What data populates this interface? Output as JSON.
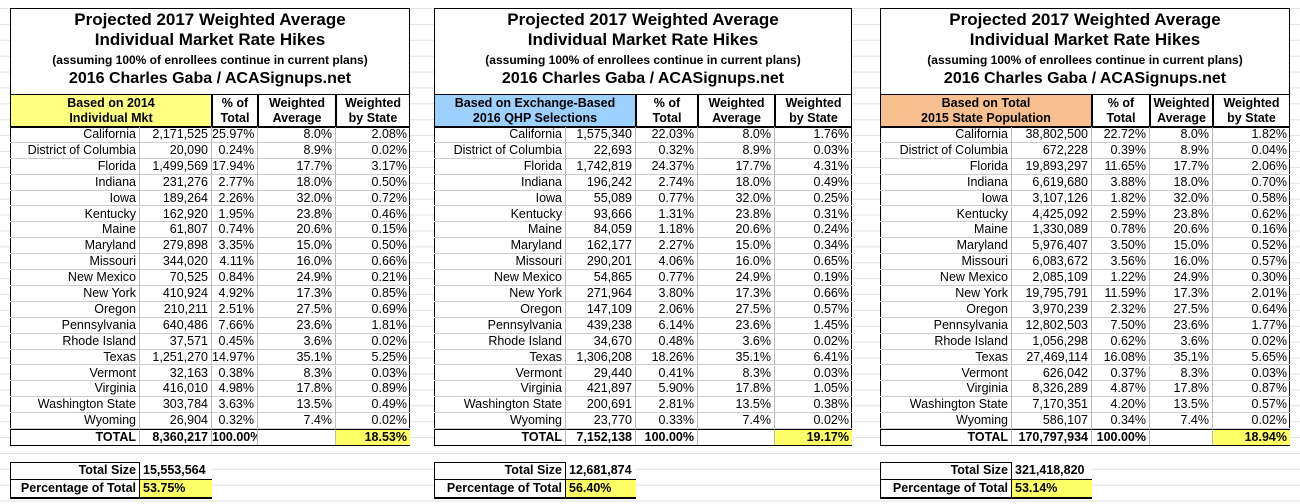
{
  "panels": [
    {
      "title": [
        "Projected 2017 Weighted Average",
        "Individual Market Rate Hikes",
        "(assuming 100% of enrollees continue in current plans)",
        "2016 Charles Gaba / ACASignups.net"
      ],
      "headers": [
        [
          "Based on 2014",
          "Individual Mkt"
        ],
        [
          "% of",
          "Total"
        ],
        [
          "Weighted",
          "Average"
        ],
        [
          "Weighted",
          "by State"
        ]
      ],
      "rows": [
        [
          "California",
          "2,171,525",
          "25.97%",
          "8.0%",
          "2.08%"
        ],
        [
          "District of Columbia",
          "20,090",
          "0.24%",
          "8.9%",
          "0.02%"
        ],
        [
          "Florida",
          "1,499,569",
          "17.94%",
          "17.7%",
          "3.17%"
        ],
        [
          "Indiana",
          "231,276",
          "2.77%",
          "18.0%",
          "0.50%"
        ],
        [
          "Iowa",
          "189,264",
          "2.26%",
          "32.0%",
          "0.72%"
        ],
        [
          "Kentucky",
          "162,920",
          "1.95%",
          "23.8%",
          "0.46%"
        ],
        [
          "Maine",
          "61,807",
          "0.74%",
          "20.6%",
          "0.15%"
        ],
        [
          "Maryland",
          "279,898",
          "3.35%",
          "15.0%",
          "0.50%"
        ],
        [
          "Missouri",
          "344,020",
          "4.11%",
          "16.0%",
          "0.66%"
        ],
        [
          "New Mexico",
          "70,525",
          "0.84%",
          "24.9%",
          "0.21%"
        ],
        [
          "New York",
          "410,924",
          "4.92%",
          "17.3%",
          "0.85%"
        ],
        [
          "Oregon",
          "210,211",
          "2.51%",
          "27.5%",
          "0.69%"
        ],
        [
          "Pennsylvania",
          "640,486",
          "7.66%",
          "23.6%",
          "1.81%"
        ],
        [
          "Rhode Island",
          "37,571",
          "0.45%",
          "3.6%",
          "0.02%"
        ],
        [
          "Texas",
          "1,251,270",
          "14.97%",
          "35.1%",
          "5.25%"
        ],
        [
          "Vermont",
          "32,163",
          "0.38%",
          "8.3%",
          "0.03%"
        ],
        [
          "Virginia",
          "416,010",
          "4.98%",
          "17.8%",
          "0.89%"
        ],
        [
          "Washington State",
          "303,784",
          "3.63%",
          "13.5%",
          "0.49%"
        ],
        [
          "Wyoming",
          "26,904",
          "0.32%",
          "7.4%",
          "0.02%"
        ]
      ],
      "total": {
        "label": "TOTAL",
        "value": "8,360,217",
        "pct": "100.00%",
        "weighted": "18.53%"
      },
      "summary": [
        [
          "Total Size",
          "15,553,564"
        ],
        [
          "Percentage of Total",
          "53.75%"
        ]
      ]
    },
    {
      "title": [
        "Projected 2017 Weighted Average",
        "Individual Market Rate Hikes",
        "(assuming 100% of enrollees continue in current plans)",
        "2016 Charles Gaba / ACASignups.net"
      ],
      "headers": [
        [
          "Based on Exchange-Based",
          "2016 QHP Selections"
        ],
        [
          "% of",
          "Total"
        ],
        [
          "Weighted",
          "Average"
        ],
        [
          "Weighted",
          "by State"
        ]
      ],
      "rows": [
        [
          "California",
          "1,575,340",
          "22.03%",
          "8.0%",
          "1.76%"
        ],
        [
          "District of Columbia",
          "22,693",
          "0.32%",
          "8.9%",
          "0.03%"
        ],
        [
          "Florida",
          "1,742,819",
          "24.37%",
          "17.7%",
          "4.31%"
        ],
        [
          "Indiana",
          "196,242",
          "2.74%",
          "18.0%",
          "0.49%"
        ],
        [
          "Iowa",
          "55,089",
          "0.77%",
          "32.0%",
          "0.25%"
        ],
        [
          "Kentucky",
          "93,666",
          "1.31%",
          "23.8%",
          "0.31%"
        ],
        [
          "Maine",
          "84,059",
          "1.18%",
          "20.6%",
          "0.24%"
        ],
        [
          "Maryland",
          "162,177",
          "2.27%",
          "15.0%",
          "0.34%"
        ],
        [
          "Missouri",
          "290,201",
          "4.06%",
          "16.0%",
          "0.65%"
        ],
        [
          "New Mexico",
          "54,865",
          "0.77%",
          "24.9%",
          "0.19%"
        ],
        [
          "New York",
          "271,964",
          "3.80%",
          "17.3%",
          "0.66%"
        ],
        [
          "Oregon",
          "147,109",
          "2.06%",
          "27.5%",
          "0.57%"
        ],
        [
          "Pennsylvania",
          "439,238",
          "6.14%",
          "23.6%",
          "1.45%"
        ],
        [
          "Rhode Island",
          "34,670",
          "0.48%",
          "3.6%",
          "0.02%"
        ],
        [
          "Texas",
          "1,306,208",
          "18.26%",
          "35.1%",
          "6.41%"
        ],
        [
          "Vermont",
          "29,440",
          "0.41%",
          "8.3%",
          "0.03%"
        ],
        [
          "Virginia",
          "421,897",
          "5.90%",
          "17.8%",
          "1.05%"
        ],
        [
          "Washington State",
          "200,691",
          "2.81%",
          "13.5%",
          "0.38%"
        ],
        [
          "Wyoming",
          "23,770",
          "0.33%",
          "7.4%",
          "0.02%"
        ]
      ],
      "total": {
        "label": "TOTAL",
        "value": "7,152,138",
        "pct": "100.00%",
        "weighted": "19.17%"
      },
      "summary": [
        [
          "Total Size",
          "12,681,874"
        ],
        [
          "Percentage of Total",
          "56.40%"
        ]
      ]
    },
    {
      "title": [
        "Projected 2017 Weighted Average",
        "Individual Market Rate Hikes",
        "(assuming 100% of enrollees continue in current plans)",
        "2016 Charles Gaba / ACASignups.net"
      ],
      "headers": [
        [
          "Based on Total",
          "2015 State Population"
        ],
        [
          "% of",
          "Total"
        ],
        [
          "Weighted",
          "Average"
        ],
        [
          "Weighted",
          "by State"
        ]
      ],
      "rows": [
        [
          "California",
          "38,802,500",
          "22.72%",
          "8.0%",
          "1.82%"
        ],
        [
          "District of Columbia",
          "672,228",
          "0.39%",
          "8.9%",
          "0.04%"
        ],
        [
          "Florida",
          "19,893,297",
          "11.65%",
          "17.7%",
          "2.06%"
        ],
        [
          "Indiana",
          "6,619,680",
          "3.88%",
          "18.0%",
          "0.70%"
        ],
        [
          "Iowa",
          "3,107,126",
          "1.82%",
          "32.0%",
          "0.58%"
        ],
        [
          "Kentucky",
          "4,425,092",
          "2.59%",
          "23.8%",
          "0.62%"
        ],
        [
          "Maine",
          "1,330,089",
          "0.78%",
          "20.6%",
          "0.16%"
        ],
        [
          "Maryland",
          "5,976,407",
          "3.50%",
          "15.0%",
          "0.52%"
        ],
        [
          "Missouri",
          "6,083,672",
          "3.56%",
          "16.0%",
          "0.57%"
        ],
        [
          "New Mexico",
          "2,085,109",
          "1.22%",
          "24.9%",
          "0.30%"
        ],
        [
          "New York",
          "19,795,791",
          "11.59%",
          "17.3%",
          "2.01%"
        ],
        [
          "Oregon",
          "3,970,239",
          "2.32%",
          "27.5%",
          "0.64%"
        ],
        [
          "Pennsylvania",
          "12,802,503",
          "7.50%",
          "23.6%",
          "1.77%"
        ],
        [
          "Rhode Island",
          "1,056,298",
          "0.62%",
          "3.6%",
          "0.02%"
        ],
        [
          "Texas",
          "27,469,114",
          "16.08%",
          "35.1%",
          "5.65%"
        ],
        [
          "Vermont",
          "626,042",
          "0.37%",
          "8.3%",
          "0.03%"
        ],
        [
          "Virginia",
          "8,326,289",
          "4.87%",
          "17.8%",
          "0.87%"
        ],
        [
          "Washington State",
          "7,170,351",
          "4.20%",
          "13.5%",
          "0.57%"
        ],
        [
          "Wyoming",
          "586,107",
          "0.34%",
          "7.4%",
          "0.02%"
        ]
      ],
      "total": {
        "label": "TOTAL",
        "value": "170,797,934",
        "pct": "100.00%",
        "weighted": "18.94%"
      },
      "summary": [
        [
          "Total Size",
          "321,418,820"
        ],
        [
          "Percentage of Total",
          "53.14%"
        ]
      ]
    }
  ]
}
